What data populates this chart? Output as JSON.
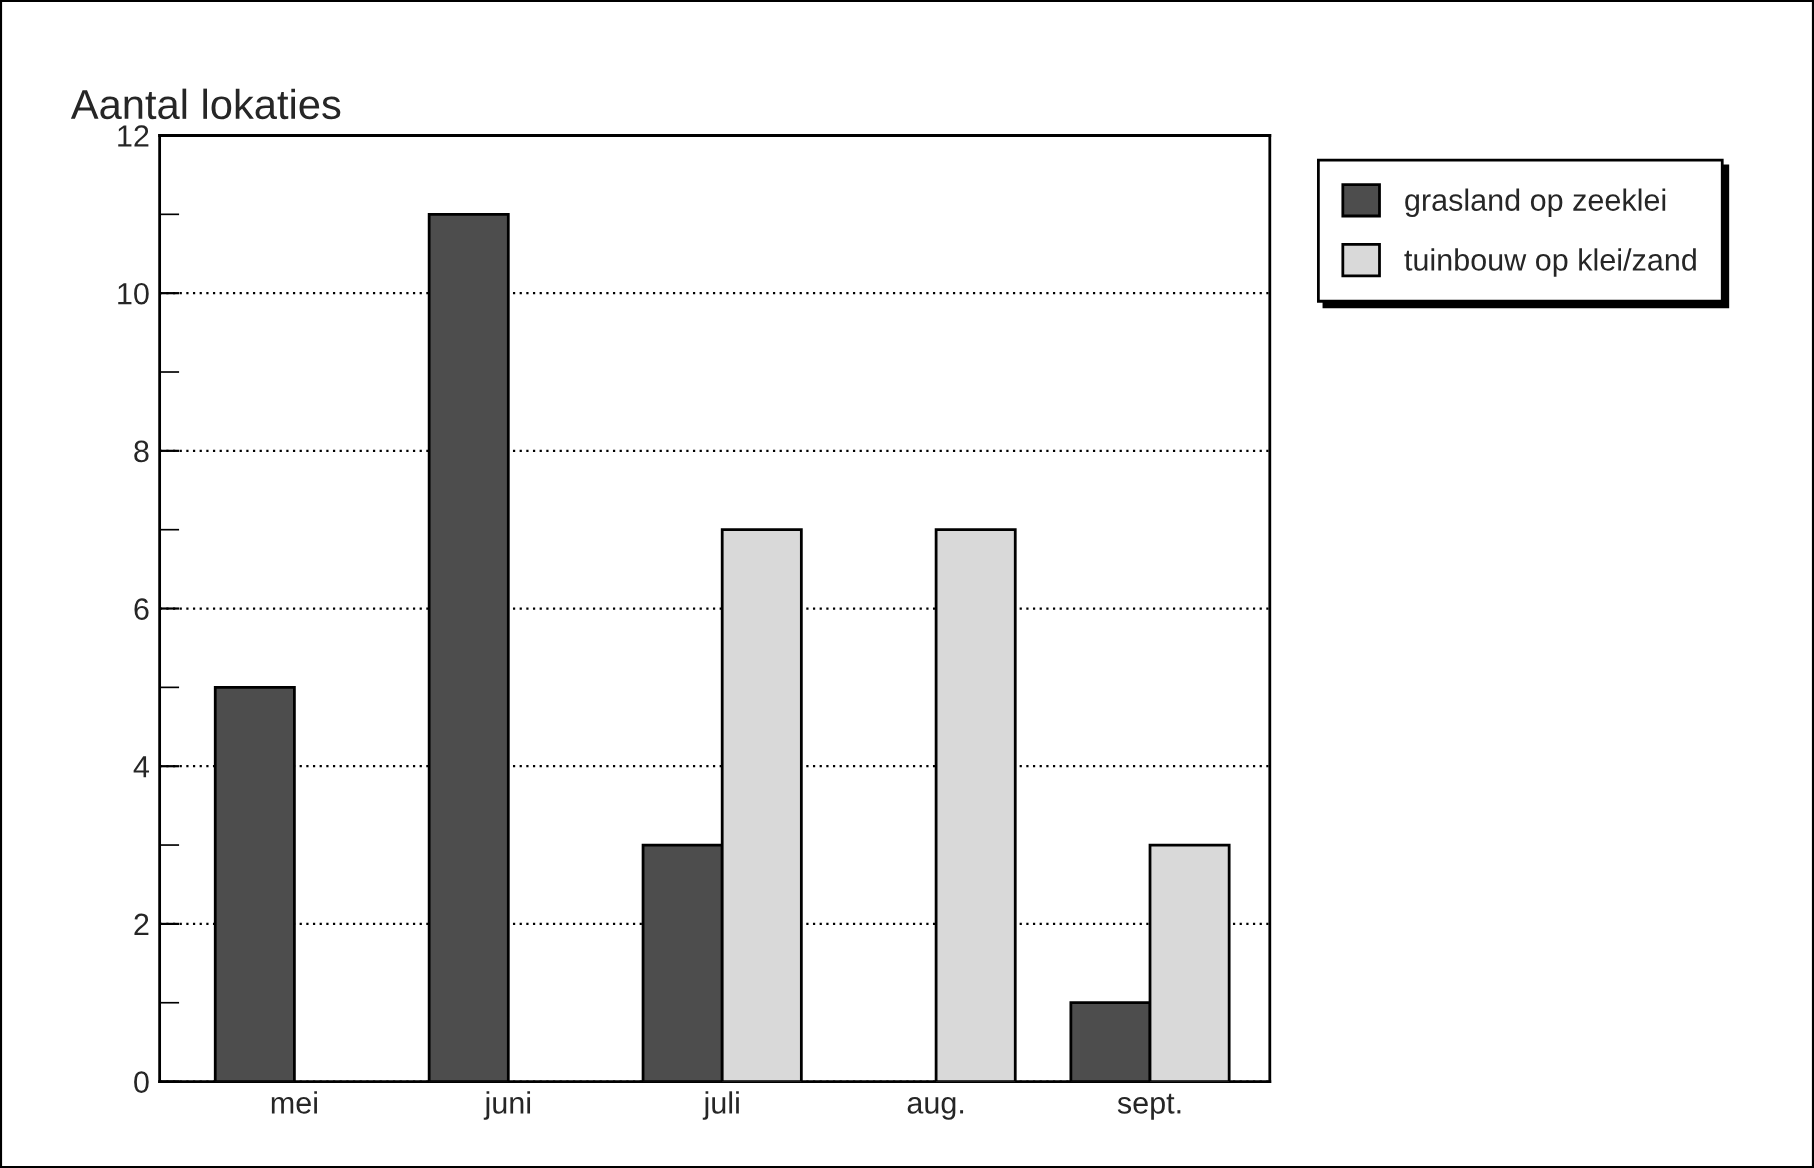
{
  "chart_data": {
    "type": "bar",
    "title": "Aantal lokaties",
    "categories": [
      "mei",
      "juni",
      "juli",
      "aug.",
      "sept."
    ],
    "series": [
      {
        "name": "grasland op zeeklei",
        "color": "#4d4d4d",
        "values": [
          5,
          11,
          3,
          null,
          1
        ]
      },
      {
        "name": "tuinbouw op klei/zand",
        "color": "#d9d9d9",
        "values": [
          null,
          null,
          7,
          7,
          3
        ]
      }
    ],
    "ylim": [
      0,
      12
    ],
    "yticks": [
      0,
      {
        "value": 1,
        "label": null
      },
      2,
      {
        "value": 3,
        "label": null
      },
      4,
      {
        "value": 5,
        "label": null
      },
      6,
      {
        "value": 7,
        "label": null
      },
      8,
      {
        "value": 9,
        "label": null
      },
      10,
      {
        "value": 11,
        "label": null
      },
      12
    ],
    "grid": "y",
    "legend": "top right"
  }
}
